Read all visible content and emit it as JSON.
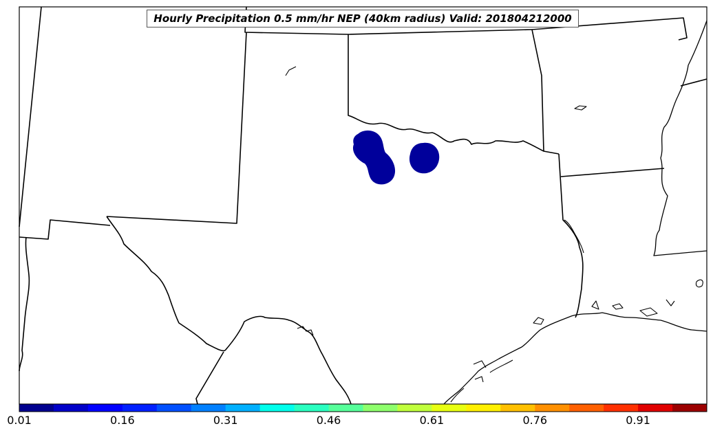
{
  "title": "Hourly Precipitation 0.5 mm/hr NEP (40km radius) Valid: 201804212000",
  "colorbar": {
    "colors": [
      "#00008f",
      "#0000c9",
      "#0000ff",
      "#0020ff",
      "#0050ff",
      "#0080ff",
      "#00b0ff",
      "#00ffec",
      "#2affc0",
      "#56ff9a",
      "#8eff6c",
      "#c0ff3c",
      "#e8ff12",
      "#fff000",
      "#ffc000",
      "#ff9000",
      "#ff6000",
      "#ff3000",
      "#e00000",
      "#9c0000"
    ],
    "ticks": [
      {
        "label": "0.01"
      },
      {
        "label": "0.16"
      },
      {
        "label": "0.31"
      },
      {
        "label": "0.46"
      },
      {
        "label": "0.61"
      },
      {
        "label": "0.76"
      },
      {
        "label": "0.91"
      }
    ]
  },
  "precip_color": "#00009b"
}
